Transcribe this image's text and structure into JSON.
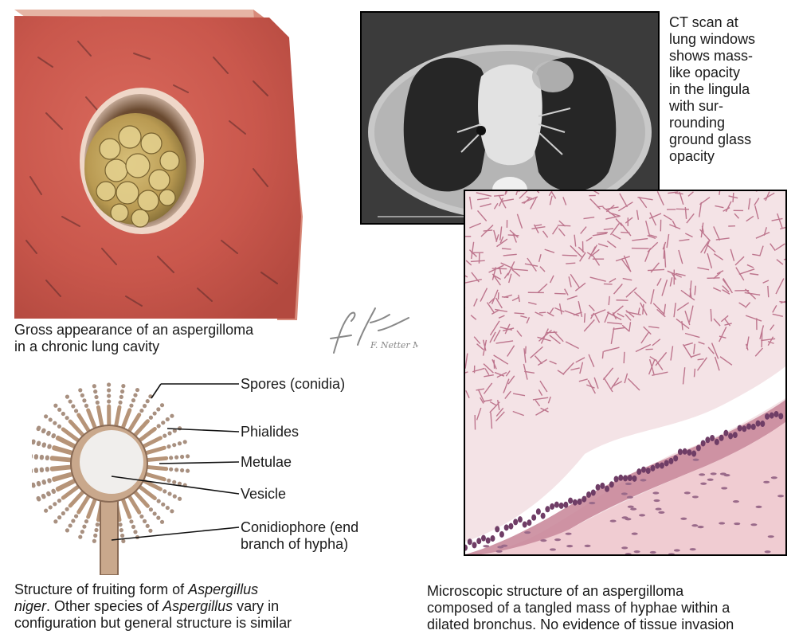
{
  "gross": {
    "caption_line1": "Gross appearance of an aspergilloma",
    "caption_line2": "in a chronic lung cavity"
  },
  "ct": {
    "caption_lines": [
      "CT scan at",
      "lung windows",
      "shows mass-",
      "like opacity",
      "in the lingula",
      "with sur-",
      "rounding",
      "ground glass",
      "opacity"
    ]
  },
  "micro": {
    "caption_line1": "Microscopic structure of an aspergilloma",
    "caption_line2": "composed of a tangled mass of hyphae within a",
    "caption_line3": "dilated bronchus. No evidence of tissue invasion"
  },
  "structure": {
    "labels": {
      "spores": "Spores (conidia)",
      "phialides": "Phialides",
      "metulae": "Metulae",
      "vesicle": "Vesicle",
      "conidiophore_line1": "Conidiophore (end",
      "conidiophore_line2": "branch of hypha)"
    },
    "caption": {
      "part1": "Structure of fruiting form of ",
      "italic1": "Aspergillus",
      "part2": "niger",
      "part3": ". Other species of ",
      "italic2": "Aspergillus",
      "part4": " vary in",
      "line3": "configuration but general structure is similar"
    }
  },
  "signature": {
    "text": "F. Netter M.D."
  },
  "colors": {
    "lung_tissue": "#c9574c",
    "fungus_ball": "#b99a52",
    "ct_background": "#3a3a3a",
    "micro_hyphae": "#b86a84",
    "micro_background": "#f2dede",
    "fruiting_body": "#c9a88c"
  }
}
